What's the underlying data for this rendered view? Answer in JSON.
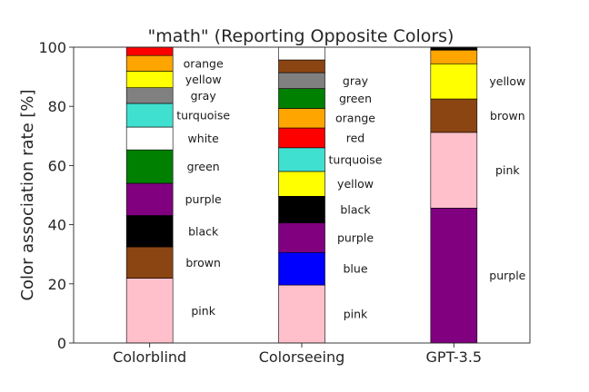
{
  "chart_data": {
    "type": "bar",
    "stacked": true,
    "title": "\"math\" (Reporting Opposite Colors)",
    "xlabel": "",
    "ylabel": "Color association rate [%]",
    "ylim": [
      0,
      100
    ],
    "yticks": [
      0,
      20,
      40,
      60,
      80,
      100
    ],
    "grid": false,
    "categories": [
      "Colorblind",
      "Colorseeing",
      "GPT-3.5"
    ],
    "colors": {
      "pink": "#ffc0cb",
      "brown": "#8b4513",
      "black": "#000000",
      "purple": "#800080",
      "green": "#008000",
      "white": "#ffffff",
      "turquoise": "#40e0d0",
      "gray": "#808080",
      "yellow": "#ffff00",
      "orange": "#ffa500",
      "red": "#ff0000",
      "blue": "#0000ff"
    },
    "bars": [
      {
        "category": "Colorblind",
        "segments": [
          {
            "name": "pink",
            "value": 21.9,
            "label": "pink"
          },
          {
            "name": "brown",
            "value": 10.6,
            "label": "brown"
          },
          {
            "name": "black",
            "value": 10.6,
            "label": "black"
          },
          {
            "name": "purple",
            "value": 10.9,
            "label": "purple"
          },
          {
            "name": "green",
            "value": 11.3,
            "label": "green"
          },
          {
            "name": "white",
            "value": 7.7,
            "label": "white"
          },
          {
            "name": "turquoise",
            "value": 8.0,
            "label": "turquoise"
          },
          {
            "name": "gray",
            "value": 5.3,
            "label": "gray"
          },
          {
            "name": "yellow",
            "value": 5.6,
            "label": "yellow"
          },
          {
            "name": "orange",
            "value": 5.3,
            "label": "orange"
          },
          {
            "name": "red",
            "value": 2.8,
            "label": ""
          }
        ]
      },
      {
        "category": "Colorseeing",
        "segments": [
          {
            "name": "pink",
            "value": 19.6,
            "label": "pink"
          },
          {
            "name": "blue",
            "value": 11.0,
            "label": "blue"
          },
          {
            "name": "purple",
            "value": 10.0,
            "label": "purple"
          },
          {
            "name": "black",
            "value": 9.0,
            "label": "black"
          },
          {
            "name": "yellow",
            "value": 8.4,
            "label": "yellow"
          },
          {
            "name": "turquoise",
            "value": 8.0,
            "label": "turquoise"
          },
          {
            "name": "red",
            "value": 6.7,
            "label": "red"
          },
          {
            "name": "orange",
            "value": 6.6,
            "label": "orange"
          },
          {
            "name": "green",
            "value": 6.7,
            "label": "green"
          },
          {
            "name": "gray",
            "value": 5.4,
            "label": "gray"
          },
          {
            "name": "brown",
            "value": 4.3,
            "label": ""
          },
          {
            "name": "white",
            "value": 4.3,
            "label": ""
          }
        ]
      },
      {
        "category": "GPT-3.5",
        "segments": [
          {
            "name": "purple",
            "value": 45.6,
            "label": "purple"
          },
          {
            "name": "pink",
            "value": 25.6,
            "label": "pink"
          },
          {
            "name": "brown",
            "value": 11.3,
            "label": "brown"
          },
          {
            "name": "yellow",
            "value": 11.9,
            "label": "yellow"
          },
          {
            "name": "orange",
            "value": 4.6,
            "label": ""
          },
          {
            "name": "black",
            "value": 1.0,
            "label": ""
          }
        ]
      }
    ]
  }
}
